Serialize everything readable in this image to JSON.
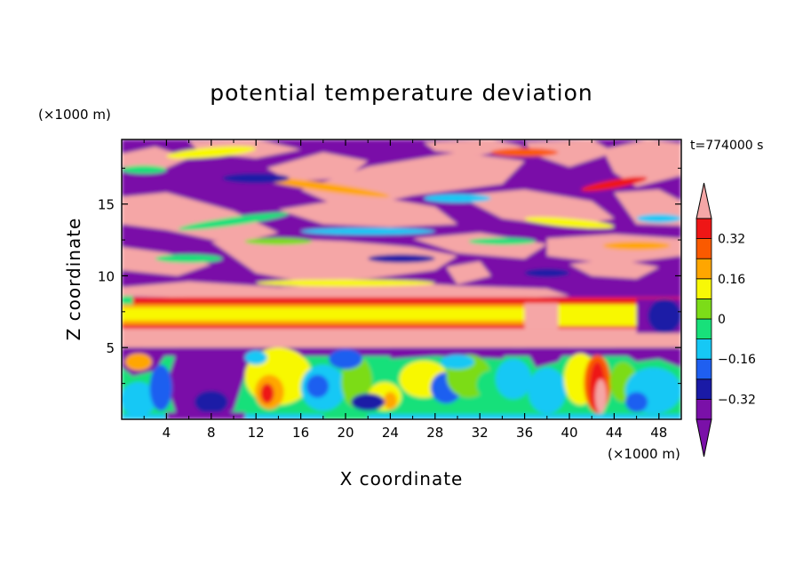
{
  "chart_data": {
    "type": "heatmap",
    "title": "potential temperature deviation",
    "xlabel": "X coordinate",
    "ylabel": "Z coordinate",
    "x_unit": "(×1000 m)",
    "y_unit": "(×1000 m)",
    "time_label": "t=774000 s",
    "xlim": [
      0,
      50
    ],
    "ylim": [
      0,
      19.5
    ],
    "x_ticks": [
      4,
      8,
      12,
      16,
      20,
      24,
      28,
      32,
      36,
      40,
      44,
      48
    ],
    "y_ticks": [
      5,
      10,
      15
    ],
    "colorbar": {
      "levels": [
        -0.4,
        -0.32,
        -0.24,
        -0.16,
        -0.08,
        0,
        0.08,
        0.16,
        0.24,
        0.32,
        0.4
      ],
      "labeled_levels": [
        {
          "value": 0.32,
          "label": "0.32"
        },
        {
          "value": 0.16,
          "label": "0.16"
        },
        {
          "value": 0,
          "label": "0"
        },
        {
          "value": -0.16,
          "label": "−0.16"
        },
        {
          "value": -0.32,
          "label": "−0.32"
        }
      ],
      "colors": [
        "#7a10a8",
        "#1a1aa6",
        "#1f5ff0",
        "#16c8f5",
        "#18e07a",
        "#7cdc18",
        "#f8f806",
        "#ffa600",
        "#fa5a00",
        "#ee1616",
        "#f5a6a6"
      ]
    },
    "regions": [
      {
        "z_range": [
          0,
          5
        ],
        "description_values": "mixed turbulence, mostly cyan/green/yellow with warm cores near x=13 and x=42"
      },
      {
        "z_range": [
          5.8,
          8.5
        ],
        "description_values": "banded stable layer: yellow core bounded by orange/red and pink"
      },
      {
        "z_range": [
          8.5,
          19.5
        ],
        "description_values": "alternating pink (warm) and purple (cold) laminae"
      }
    ]
  },
  "colors": {
    "background": "#ffffff",
    "frame": "#000000"
  }
}
